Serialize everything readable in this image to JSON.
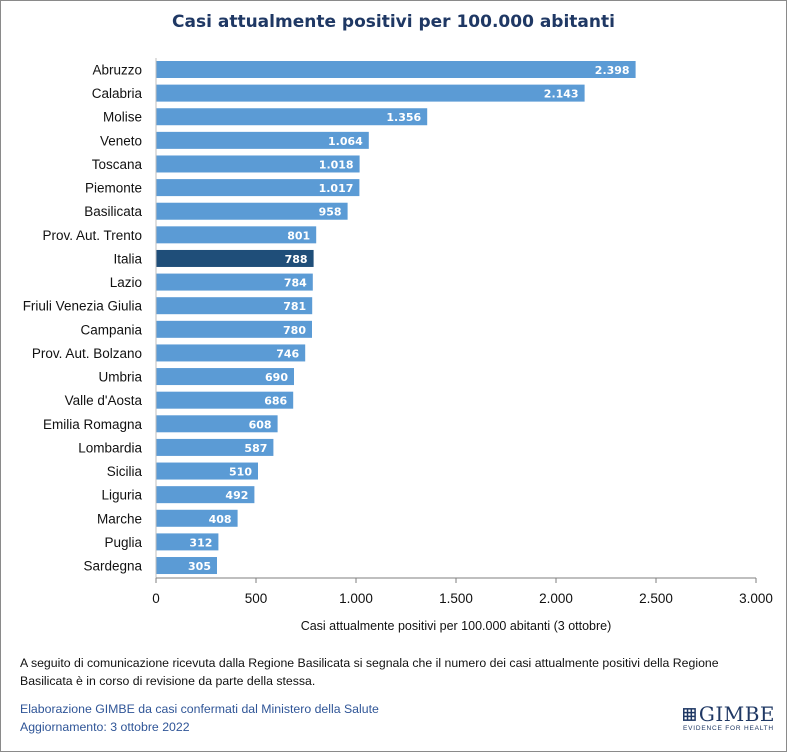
{
  "chart_data": {
    "type": "bar",
    "orientation": "horizontal",
    "title": "Casi attualmente positivi per 100.000 abitanti",
    "xlabel": "Casi attualmente positivi per 100.000 abitanti (3 ottobre)",
    "ylabel": "",
    "xlim": [
      0,
      3000
    ],
    "xticks": [
      0,
      500,
      1000,
      1500,
      2000,
      2500,
      3000
    ],
    "xtick_labels": [
      "0",
      "500",
      "1.000",
      "1.500",
      "2.000",
      "2.500",
      "3.000"
    ],
    "grid": false,
    "categories": [
      "Abruzzo",
      "Calabria",
      "Molise",
      "Veneto",
      "Toscana",
      "Piemonte",
      "Basilicata",
      "Prov. Aut. Trento",
      "Italia",
      "Lazio",
      "Friuli Venezia Giulia",
      "Campania",
      "Prov. Aut. Bolzano",
      "Umbria",
      "Valle d'Aosta",
      "Emilia Romagna",
      "Lombardia",
      "Sicilia",
      "Liguria",
      "Marche",
      "Puglia",
      "Sardegna"
    ],
    "values": [
      2398,
      2143,
      1356,
      1064,
      1018,
      1017,
      958,
      801,
      788,
      784,
      781,
      780,
      746,
      690,
      686,
      608,
      587,
      510,
      492,
      408,
      312,
      305
    ],
    "value_labels": [
      "2.398",
      "2.143",
      "1.356",
      "1.064",
      "1.018",
      "1.017",
      "958",
      "801",
      "788",
      "784",
      "781",
      "780",
      "746",
      "690",
      "686",
      "608",
      "587",
      "510",
      "492",
      "408",
      "312",
      "305"
    ],
    "highlight": "Italia",
    "colors": {
      "bar": "#5b9bd5",
      "highlight": "#1f4e79",
      "title": "#1f3864",
      "axis": "#7f7f7f"
    }
  },
  "note": "A seguito di comunicazione ricevuta dalla Regione Basilicata si segnala che il numero dei casi attualmente positivi della Regione Basilicata è in corso di revisione da parte della stessa.",
  "source": {
    "line1": "Elaborazione GIMBE da casi confermati dal Ministero della Salute",
    "line2": "Aggiornamento: 3 ottobre 2022"
  },
  "logo": {
    "name": "GIMBE",
    "tagline": "EVIDENCE FOR HEALTH",
    "icon": "gimbe-grid-icon"
  }
}
